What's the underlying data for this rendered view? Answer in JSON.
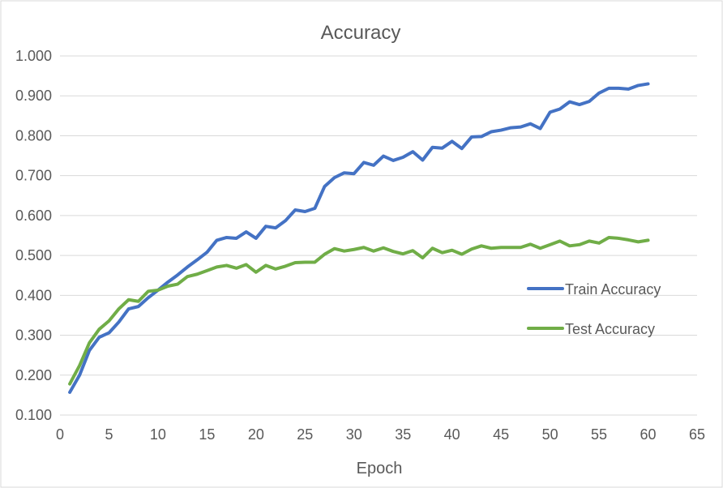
{
  "chart_data": {
    "type": "line",
    "title": "Accuracy",
    "xlabel": "Epoch",
    "ylabel": "",
    "xlim": [
      0,
      65
    ],
    "ylim": [
      0.1,
      1.0
    ],
    "x_ticks": [
      "0",
      "5",
      "10",
      "15",
      "20",
      "25",
      "30",
      "35",
      "40",
      "45",
      "50",
      "55",
      "60",
      "65"
    ],
    "y_ticks": [
      "0.100",
      "0.200",
      "0.300",
      "0.400",
      "0.500",
      "0.600",
      "0.700",
      "0.800",
      "0.900",
      "1.000"
    ],
    "grid": "horizontal",
    "legend_position": "right",
    "x": [
      1,
      2,
      3,
      4,
      5,
      6,
      7,
      8,
      9,
      10,
      11,
      12,
      13,
      14,
      15,
      16,
      17,
      18,
      19,
      20,
      21,
      22,
      23,
      24,
      25,
      26,
      27,
      28,
      29,
      30,
      31,
      32,
      33,
      34,
      35,
      36,
      37,
      38,
      39,
      40,
      41,
      42,
      43,
      44,
      45,
      46,
      47,
      48,
      49,
      50,
      51,
      52,
      53,
      54,
      55,
      56,
      57,
      58,
      59,
      60
    ],
    "series": [
      {
        "name": "Train Accuracy",
        "color": "#4472C4",
        "values": [
          0.157,
          0.2,
          0.262,
          0.295,
          0.306,
          0.333,
          0.366,
          0.372,
          0.394,
          0.413,
          0.433,
          0.451,
          0.471,
          0.489,
          0.508,
          0.538,
          0.545,
          0.543,
          0.559,
          0.543,
          0.573,
          0.569,
          0.587,
          0.614,
          0.61,
          0.618,
          0.673,
          0.695,
          0.707,
          0.705,
          0.733,
          0.726,
          0.749,
          0.738,
          0.746,
          0.76,
          0.739,
          0.771,
          0.769,
          0.786,
          0.768,
          0.797,
          0.798,
          0.81,
          0.814,
          0.82,
          0.822,
          0.83,
          0.818,
          0.859,
          0.867,
          0.885,
          0.878,
          0.886,
          0.907,
          0.919,
          0.919,
          0.917,
          0.926,
          0.93
        ]
      },
      {
        "name": "Test Accuracy",
        "color": "#70AD47",
        "values": [
          0.178,
          0.224,
          0.281,
          0.315,
          0.336,
          0.366,
          0.389,
          0.385,
          0.41,
          0.413,
          0.423,
          0.428,
          0.447,
          0.453,
          0.462,
          0.471,
          0.475,
          0.468,
          0.477,
          0.458,
          0.475,
          0.466,
          0.473,
          0.482,
          0.483,
          0.483,
          0.503,
          0.517,
          0.511,
          0.515,
          0.52,
          0.511,
          0.519,
          0.51,
          0.504,
          0.512,
          0.494,
          0.518,
          0.507,
          0.513,
          0.503,
          0.516,
          0.524,
          0.518,
          0.52,
          0.52,
          0.52,
          0.528,
          0.518,
          0.527,
          0.536,
          0.524,
          0.527,
          0.536,
          0.531,
          0.545,
          0.543,
          0.539,
          0.534,
          0.538
        ]
      }
    ]
  }
}
